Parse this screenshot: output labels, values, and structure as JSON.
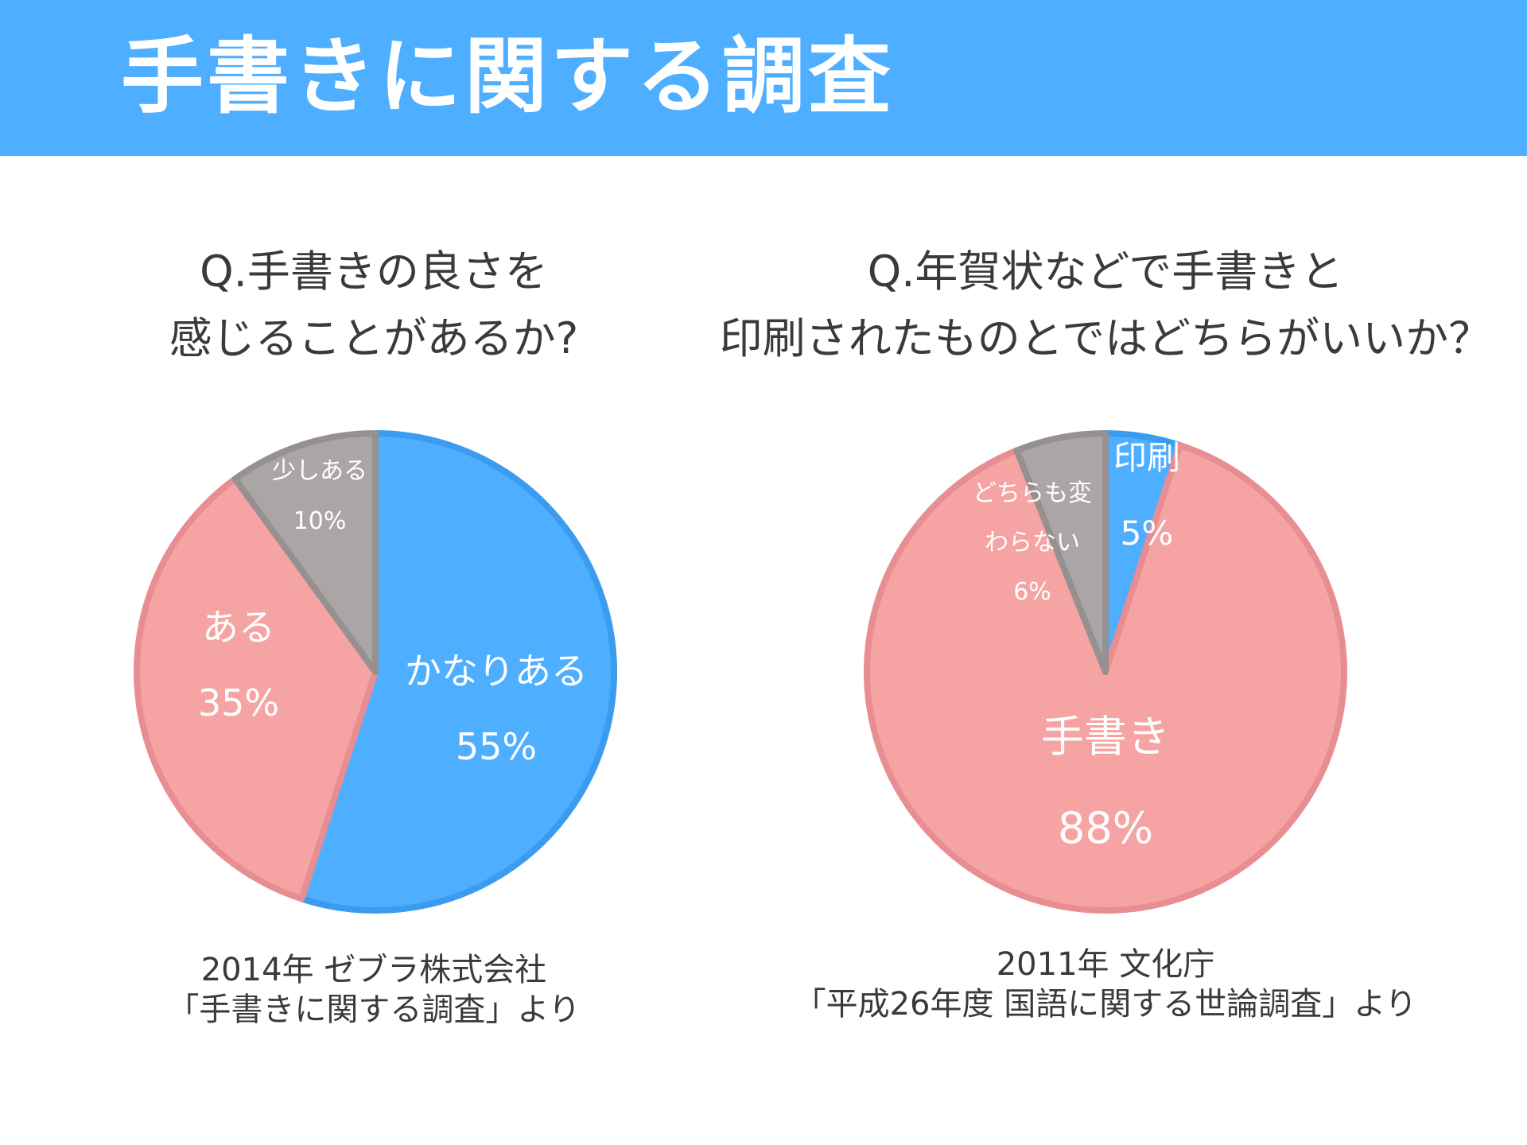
{
  "header": {
    "title": "手書きに関する調査"
  },
  "charts": [
    {
      "question_lines": [
        "Q.手書きの良さを",
        "感じることがあるか?"
      ],
      "source_lines": [
        "2014年 ゼブラ株式会社",
        "「手書きに関する調査」より"
      ]
    },
    {
      "question_lines": [
        "Q.年賀状などで手書きと",
        "印刷されたものとではどちらがいいか？"
      ],
      "source_lines": [
        "2011年 文化庁",
        "「平成26年度 国語に関する世論調査」より"
      ]
    }
  ],
  "chart_data": [
    {
      "type": "pie",
      "title": "Q.手書きの良さを感じることがあるか?",
      "slices": [
        {
          "label": "かなりある",
          "value": 55,
          "value_label": "55%",
          "color": "#4eaeff",
          "stroke": "#3b9bef"
        },
        {
          "label": "ある",
          "value": 35,
          "value_label": "35%",
          "color": "#f5a3a3",
          "stroke": "#e88e92"
        },
        {
          "label": "少しある",
          "value": 10,
          "value_label": "10%",
          "color": "#aba6a6",
          "stroke": "#969090"
        }
      ]
    },
    {
      "type": "pie",
      "title": "Q.年賀状などで手書きと印刷されたものとではどちらがいいか？",
      "slices": [
        {
          "label": "印刷",
          "value": 5,
          "value_label": "5%",
          "color": "#4eaeff",
          "stroke": "#3b9bef"
        },
        {
          "label": "手書き",
          "value": 88,
          "value_label": "88%",
          "color": "#f5a3a3",
          "stroke": "#e88e92"
        },
        {
          "label_lines": [
            "どちらも変",
            "わらない"
          ],
          "value": 6,
          "value_label": "6%",
          "color": "#aba6a6",
          "stroke": "#969090"
        }
      ]
    }
  ]
}
